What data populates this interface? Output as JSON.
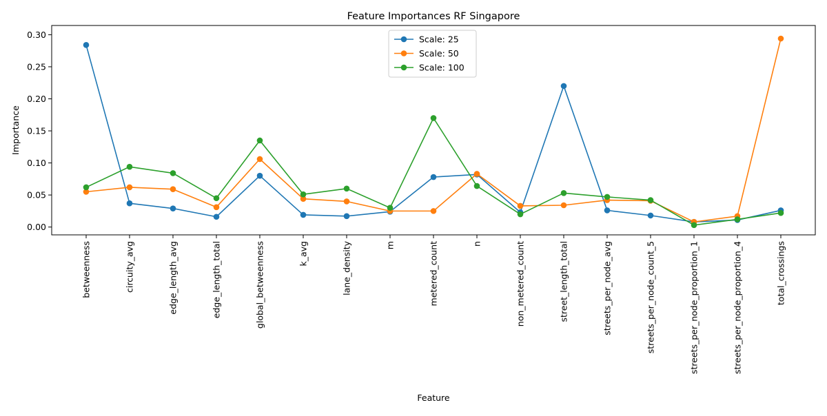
{
  "chart_data": {
    "type": "line",
    "title": "Feature Importances RF Singapore",
    "xlabel": "Feature",
    "ylabel": "Importance",
    "ylim": [
      -0.0122,
      0.3144
    ],
    "yticks": [
      "0.00",
      "0.05",
      "0.10",
      "0.15",
      "0.20",
      "0.25",
      "0.30"
    ],
    "ytick_values": [
      0,
      0.05,
      0.1,
      0.15,
      0.2,
      0.25,
      0.3
    ],
    "grid": false,
    "legend_position": "top-center",
    "categories": [
      "betweenness",
      "circuity_avg",
      "edge_length_avg",
      "edge_length_total",
      "global_betweenness",
      "k_avg",
      "lane_density",
      "m",
      "metered_count",
      "n",
      "non_metered_count",
      "street_length_total",
      "streets_per_node_avg",
      "streets_per_node_count_5",
      "streets_per_node_proportion_1",
      "streets_per_node_proportion_4",
      "total_crossings"
    ],
    "series": [
      {
        "name": "Scale: 25",
        "color": "#1f77b4",
        "values": [
          0.284,
          0.037,
          0.029,
          0.016,
          0.08,
          0.019,
          0.017,
          0.024,
          0.078,
          0.082,
          0.023,
          0.22,
          0.026,
          0.018,
          0.008,
          0.011,
          0.026
        ]
      },
      {
        "name": "Scale: 50",
        "color": "#ff7f0e",
        "values": [
          0.055,
          0.062,
          0.059,
          0.031,
          0.106,
          0.044,
          0.04,
          0.025,
          0.025,
          0.083,
          0.033,
          0.034,
          0.042,
          0.041,
          0.008,
          0.017,
          0.294
        ]
      },
      {
        "name": "Scale: 100",
        "color": "#2ca02c",
        "values": [
          0.062,
          0.094,
          0.084,
          0.045,
          0.135,
          0.051,
          0.06,
          0.03,
          0.17,
          0.064,
          0.02,
          0.053,
          0.047,
          0.042,
          0.003,
          0.012,
          0.022
        ]
      }
    ]
  }
}
